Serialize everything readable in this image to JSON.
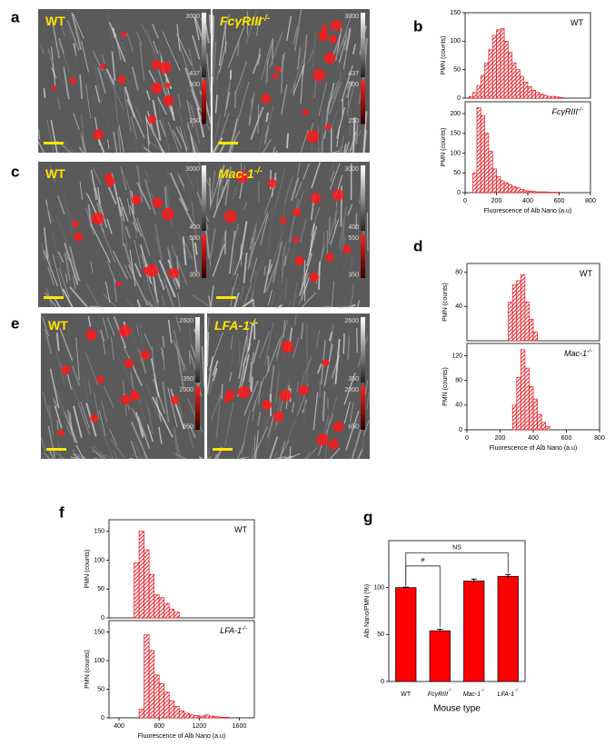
{
  "panel_letters": [
    "a",
    "b",
    "c",
    "d",
    "e",
    "f",
    "g"
  ],
  "images": [
    {
      "label": "WT",
      "label_sup": null,
      "scale": [
        "3000",
        "437",
        "500",
        "250"
      ]
    },
    {
      "label": "FcγRIII",
      "label_sup": "-/-",
      "scale": [
        "3000",
        "437",
        "500",
        "250"
      ]
    },
    {
      "label": "WT",
      "label_sup": null,
      "scale": [
        "3000",
        "400",
        "550",
        "350"
      ]
    },
    {
      "label": "Mac-1",
      "label_sup": "-/-",
      "scale": [
        "3000",
        "400",
        "550",
        "350"
      ]
    },
    {
      "label": "WT",
      "label_sup": null,
      "scale": [
        "2600",
        "350",
        "2000",
        "650"
      ]
    },
    {
      "label": "LFA-1",
      "label_sup": "-/-",
      "scale": [
        "2600",
        "350",
        "2000",
        "650"
      ]
    }
  ],
  "chart_data": [
    {
      "type": "histogram",
      "label": "WT",
      "label_sup": null,
      "ylabel": "PMN (counts)",
      "bins": [
        25,
        50,
        75,
        100,
        125,
        150,
        175,
        200,
        225,
        250,
        275,
        300,
        325,
        350,
        375,
        400,
        425,
        450,
        475,
        500,
        525,
        550,
        575,
        600,
        625
      ],
      "values": [
        3,
        10,
        22,
        40,
        62,
        85,
        110,
        120,
        122,
        100,
        80,
        62,
        50,
        38,
        28,
        20,
        14,
        10,
        7,
        5,
        3,
        3,
        2,
        1
      ],
      "xlim": [
        0,
        800
      ],
      "ylim": [
        0,
        150
      ],
      "yticks": [
        0,
        50,
        100,
        150
      ],
      "color": "#e8141c"
    },
    {
      "type": "histogram",
      "label": "FcγRIII",
      "label_sup": "-/-",
      "ylabel": "PMN (counts)",
      "xlabel": "Fluorescence of Alb Nano (a.u)",
      "bins": [
        50,
        75,
        100,
        125,
        150,
        175,
        200,
        225,
        250,
        275,
        300,
        325,
        350,
        375,
        400,
        425,
        450,
        475,
        500,
        525,
        550,
        575,
        600
      ],
      "values": [
        50,
        215,
        195,
        150,
        105,
        60,
        40,
        30,
        25,
        20,
        15,
        12,
        8,
        5,
        4,
        3,
        2,
        2,
        2,
        1,
        1,
        1
      ],
      "xlim": [
        0,
        800
      ],
      "xticks": [
        0,
        200,
        400,
        600,
        800
      ],
      "ylim": [
        0,
        230
      ],
      "yticks": [
        0,
        50,
        100,
        150,
        200
      ],
      "color": "#e8141c"
    },
    {
      "type": "histogram",
      "label": "WT",
      "label_sup": null,
      "ylabel": "PMN (counts)",
      "bins": [
        250,
        275,
        300,
        325,
        350,
        375,
        400,
        425
      ],
      "values": [
        45,
        65,
        70,
        77,
        45,
        25,
        10
      ],
      "xlim": [
        0,
        800
      ],
      "ylim": [
        0,
        90
      ],
      "yticks": [
        40,
        80
      ],
      "color": "#e8141c"
    },
    {
      "type": "histogram",
      "label": "Mac-1",
      "label_sup": "-/-",
      "ylabel": "PMN (counts)",
      "xlabel": "Fluorescence of Alb Nano (a.u)",
      "bins": [
        275,
        300,
        325,
        350,
        375,
        400,
        425,
        450,
        475,
        500
      ],
      "values": [
        40,
        85,
        130,
        100,
        70,
        50,
        25,
        12,
        5
      ],
      "xlim": [
        0,
        800
      ],
      "xticks": [
        0,
        200,
        400,
        600,
        800
      ],
      "ylim": [
        0,
        140
      ],
      "yticks": [
        0,
        40,
        80,
        120
      ],
      "color": "#e8141c"
    },
    {
      "type": "histogram",
      "label": "WT",
      "label_sup": null,
      "ylabel": "PMN (counts)",
      "bins": [
        550,
        600,
        650,
        700,
        750,
        800,
        850,
        900,
        950,
        1000
      ],
      "values": [
        95,
        150,
        118,
        75,
        40,
        35,
        25,
        15,
        10
      ],
      "xlim": [
        300,
        1750
      ],
      "ylim": [
        0,
        170
      ],
      "yticks": [
        0,
        50,
        100,
        150
      ],
      "color": "#e8141c"
    },
    {
      "type": "histogram",
      "label": "LFA-1",
      "label_sup": "-/-",
      "ylabel": "PMN (counts)",
      "xlabel": "Fluorescence of Alb Nano (a.u)",
      "bins": [
        600,
        650,
        700,
        750,
        800,
        850,
        900,
        950,
        1000,
        1050,
        1100,
        1150,
        1200,
        1250,
        1300,
        1350,
        1400,
        1450,
        1500
      ],
      "values": [
        15,
        145,
        118,
        75,
        60,
        45,
        30,
        20,
        12,
        8,
        5,
        4,
        3,
        5,
        3,
        2,
        1,
        1
      ],
      "xlim": [
        300,
        1750
      ],
      "xticks": [
        400,
        800,
        1200,
        1600
      ],
      "ylim": [
        0,
        170
      ],
      "yticks": [
        0,
        50,
        100,
        150
      ],
      "color": "#e8141c"
    },
    {
      "type": "bar",
      "ylabel": "Alb Nano/PMN (%)",
      "xlabel": "Mouse type",
      "categories": [
        "WT",
        "FcγRIII",
        "Mac-1",
        "LFA-1"
      ],
      "category_sups": [
        null,
        "-/-",
        "-/-",
        "-/-"
      ],
      "values": [
        100,
        54,
        107,
        112
      ],
      "errors": [
        0.5,
        1.5,
        2,
        2
      ],
      "ylim": [
        0,
        150
      ],
      "yticks": [
        0,
        50,
        100
      ],
      "color": "#ff0000",
      "annotations": [
        {
          "text": "#",
          "from": 0,
          "to": 1,
          "level": 123
        },
        {
          "text": "NS",
          "from": 0,
          "to": 3,
          "level": 137
        }
      ]
    }
  ]
}
